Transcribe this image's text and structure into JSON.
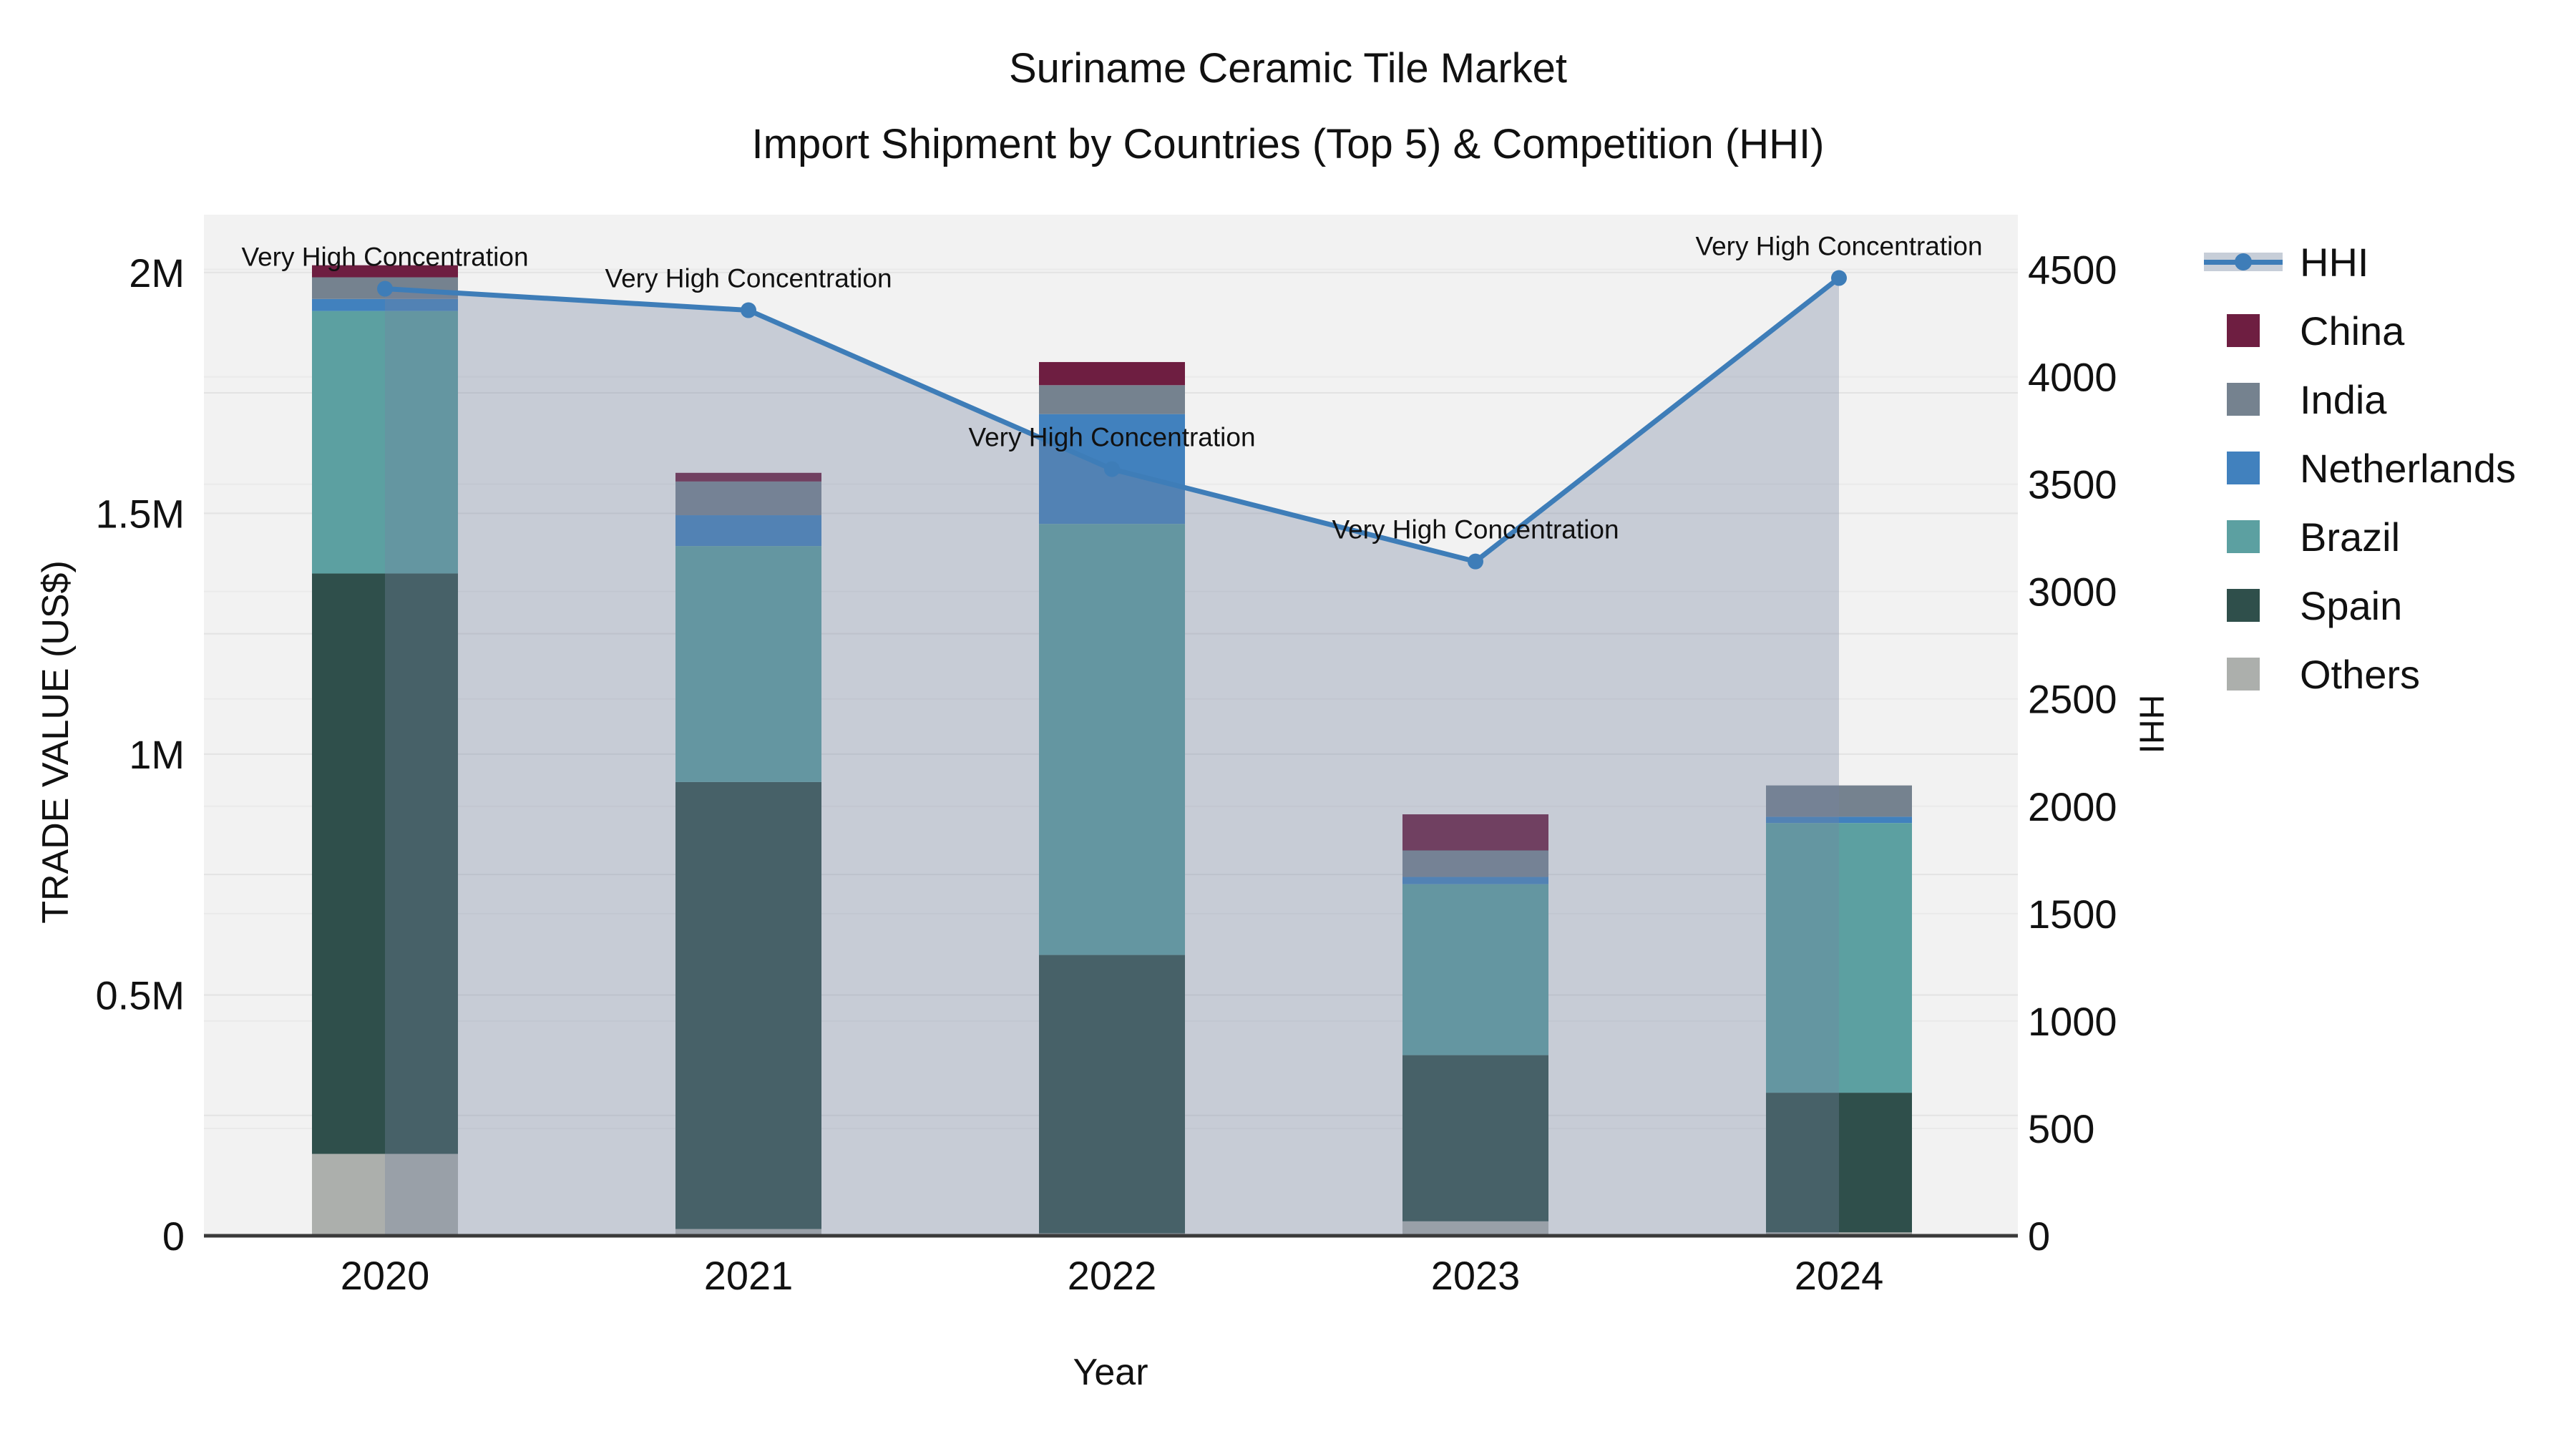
{
  "title": {
    "line1": "Suriname Ceramic Tile Market",
    "line2": "Import Shipment by Countries (Top 5) & Competition (HHI)"
  },
  "axes": {
    "left_title": "TRADE VALUE (US$)",
    "right_title": "HHI",
    "x_title": "Year"
  },
  "legend": {
    "items": [
      "HHI",
      "China",
      "India",
      "Netherlands",
      "Brazil",
      "Spain",
      "Others"
    ]
  },
  "colors": {
    "hhi_line": "#3E7DB8",
    "hhi_legend_band": "#C7CED8",
    "area_fill": "rgba(118,133,161,0.34)",
    "plot_background": "#F2F2F2",
    "grid_left": "#E3E3E3",
    "grid_right": "#EAEAEA",
    "axis_line": "#3A3A3A",
    "china": "#6E1E41",
    "india": "#75828F",
    "netherlands": "#4181BE",
    "brazil": "#5CA0A1",
    "spain": "#2F4F4B",
    "others": "#ACAFAC"
  },
  "chart_data": {
    "type": "bar",
    "subtype": "stacked-bars-with-line-area",
    "title": "Suriname Ceramic Tile Market — Import Shipment by Countries (Top 5) & Competition (HHI)",
    "categories": [
      "2020",
      "2021",
      "2022",
      "2023",
      "2024"
    ],
    "xlabel": "Year",
    "bar_axis": {
      "label": "TRADE VALUE (US$)",
      "side": "left",
      "range": [
        0,
        2120000
      ],
      "tick_values": [
        0,
        500000,
        1000000,
        1500000,
        2000000
      ],
      "tick_labels": [
        "0",
        "0.5M",
        "1M",
        "1.5M",
        "2M"
      ],
      "minor_grid_step": 250000
    },
    "line_axis": {
      "label": "HHI",
      "side": "right",
      "range": [
        0,
        4755
      ],
      "tick_values": [
        0,
        500,
        1000,
        1500,
        2000,
        2500,
        3000,
        3500,
        4000,
        4500
      ],
      "tick_labels": [
        "0",
        "500",
        "1000",
        "1500",
        "2000",
        "2500",
        "3000",
        "3500",
        "4000",
        "4500"
      ],
      "grid_step": 500
    },
    "stack_order_bottom_to_top": [
      "Others",
      "Spain",
      "Brazil",
      "Netherlands",
      "India",
      "China"
    ],
    "series": [
      {
        "name": "China",
        "color": "#6E1E41",
        "values": [
          25000,
          18000,
          48000,
          75000,
          0
        ]
      },
      {
        "name": "India",
        "color": "#75828F",
        "values": [
          45000,
          70000,
          60000,
          55000,
          65000
        ]
      },
      {
        "name": "Netherlands",
        "color": "#4181BE",
        "values": [
          25000,
          64000,
          228000,
          15000,
          13000
        ]
      },
      {
        "name": "Brazil",
        "color": "#5CA0A1",
        "values": [
          545000,
          490000,
          895000,
          355000,
          560000
        ]
      },
      {
        "name": "Spain",
        "color": "#2F4F4B",
        "values": [
          1205000,
          928000,
          578000,
          345000,
          290000
        ]
      },
      {
        "name": "Others",
        "color": "#ACAFAC",
        "values": [
          170000,
          14000,
          5000,
          30000,
          7000
        ]
      }
    ],
    "line_series": {
      "name": "HHI",
      "color": "#3E7DB8",
      "area_fill": "rgba(118,133,161,0.34)",
      "values": [
        4410,
        4310,
        3570,
        3140,
        4460
      ]
    },
    "annotations": [
      {
        "category": "2020",
        "text": "Very High Concentration"
      },
      {
        "category": "2021",
        "text": "Very High Concentration"
      },
      {
        "category": "2022",
        "text": "Very High Concentration"
      },
      {
        "category": "2023",
        "text": "Very High Concentration"
      },
      {
        "category": "2024",
        "text": "Very High Concentration"
      }
    ],
    "legend_position": "right",
    "grid": true
  }
}
